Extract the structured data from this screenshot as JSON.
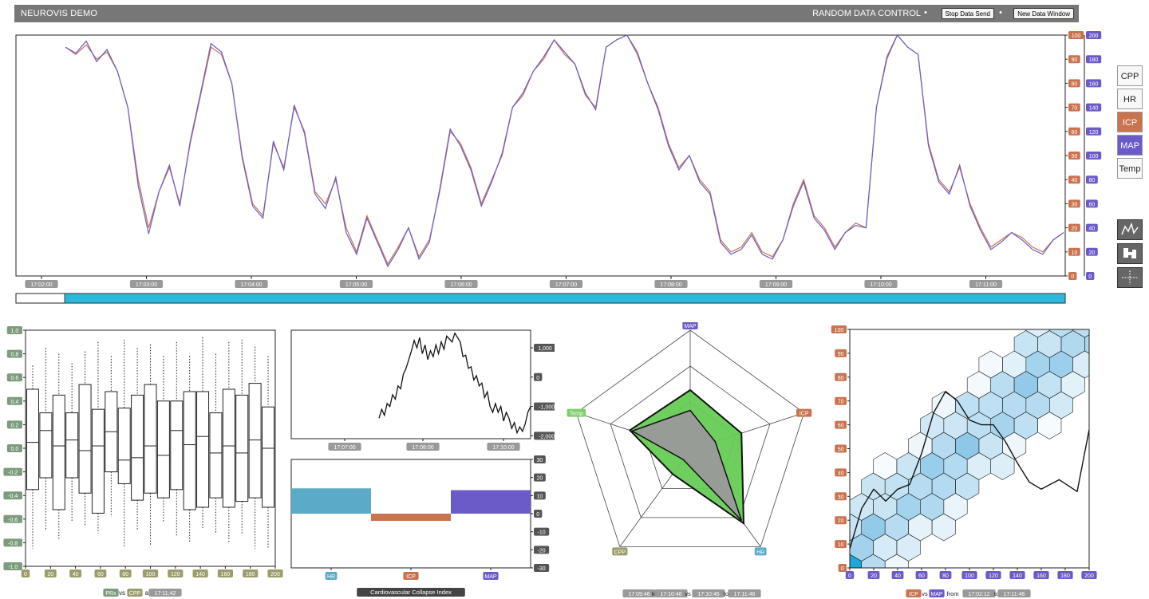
{
  "header": {
    "app_title": "NEUROVIS DEMO",
    "control_label": "RANDOM DATA CONTROL",
    "stop_button": "Stop Data Send",
    "new_window_button": "New Data Window"
  },
  "colors": {
    "header_bg": "#777777",
    "icp": "#c9734f",
    "map": "#6b5bc9",
    "cpp": "#9c9c6c",
    "hr": "#5aaac8",
    "temp": "#7ccf6a",
    "prx": "#7c9c7c",
    "brush": "#2bb8dc",
    "radar_fill": "#66cc55",
    "radar_inner": "#999999"
  },
  "sidebar": {
    "channels": [
      {
        "label": "CPP",
        "active": false
      },
      {
        "label": "HR",
        "active": false
      },
      {
        "label": "ICP",
        "active": true,
        "color": "#c9734f"
      },
      {
        "label": "MAP",
        "active": true,
        "color": "#6b5bc9"
      },
      {
        "label": "Temp",
        "active": false
      }
    ],
    "tools": [
      {
        "icon": "line-chart-icon"
      },
      {
        "icon": "block-chart-icon"
      },
      {
        "icon": "crosshair-icon"
      }
    ]
  },
  "chart_data": [
    {
      "type": "line",
      "id": "main-timeseries",
      "x_ticks": [
        "17:02:00",
        "17:03:00",
        "17:04:00",
        "17:05:00",
        "17:06:00",
        "17:07:00",
        "17:08:00",
        "17:09:00",
        "17:10:00",
        "17:11:00"
      ],
      "icp_axis_ticks": [
        "100",
        "90",
        "80",
        "70",
        "60",
        "50",
        "40",
        "30",
        "20",
        "10",
        "0"
      ],
      "map_axis_ticks": [
        "200",
        "180",
        "160",
        "140",
        "120",
        "100",
        "80",
        "60",
        "40",
        "20",
        "0"
      ],
      "ylim_icp": [
        0,
        100
      ],
      "ylim_map": [
        0,
        200
      ],
      "series": [
        {
          "name": "ICP",
          "color": "#c9734f",
          "values": [
            95,
            92,
            96,
            90,
            93,
            85,
            70,
            40,
            20,
            35,
            45,
            30,
            55,
            75,
            95,
            92,
            80,
            50,
            30,
            25,
            55,
            45,
            70,
            60,
            35,
            30,
            40,
            20,
            10,
            25,
            15,
            5,
            12,
            20,
            8,
            15,
            35,
            60,
            55,
            45,
            30,
            40,
            50,
            70,
            75,
            85,
            90,
            98,
            92,
            88,
            75,
            70,
            95,
            98,
            100,
            92,
            80,
            70,
            55,
            45,
            50,
            40,
            35,
            15,
            10,
            12,
            18,
            10,
            8,
            15,
            30,
            40,
            25,
            20,
            12,
            18,
            22,
            20,
            70,
            90,
            100,
            95,
            92,
            55,
            40,
            35,
            45,
            30,
            20,
            12,
            15,
            18,
            16,
            12,
            10,
            15,
            18
          ]
        },
        {
          "name": "MAP",
          "color": "#6b5bc9",
          "values": [
            190,
            185,
            195,
            178,
            188,
            170,
            140,
            75,
            35,
            70,
            92,
            58,
            112,
            152,
            193,
            186,
            160,
            98,
            58,
            48,
            112,
            88,
            142,
            118,
            68,
            56,
            82,
            36,
            18,
            48,
            28,
            8,
            22,
            40,
            14,
            28,
            72,
            122,
            108,
            88,
            58,
            78,
            102,
            140,
            152,
            170,
            182,
            196,
            186,
            176,
            152,
            138,
            190,
            196,
            200,
            186,
            160,
            138,
            108,
            88,
            100,
            78,
            68,
            28,
            18,
            22,
            34,
            18,
            14,
            30,
            58,
            78,
            48,
            38,
            22,
            36,
            42,
            40,
            140,
            182,
            200,
            190,
            184,
            108,
            78,
            68,
            92,
            58,
            38,
            22,
            28,
            36,
            30,
            22,
            18,
            30,
            36
          ]
        }
      ]
    },
    {
      "type": "box",
      "id": "prx-boxplot",
      "x_ticks": [
        "0",
        "20",
        "40",
        "60",
        "80",
        "100",
        "120",
        "140",
        "160",
        "180",
        "200"
      ],
      "y_ticks": [
        "1.0",
        "0.8",
        "0.6",
        "0.4",
        "0.2",
        "0.0",
        "-0.2",
        "-0.4",
        "-0.6",
        "-0.8",
        "-1.0"
      ],
      "ylim": [
        -1.0,
        1.0
      ],
      "boxes": [
        {
          "q1": -0.35,
          "med": 0.05,
          "q3": 0.5,
          "min": -0.85,
          "max": 0.7
        },
        {
          "q1": -0.25,
          "med": 0.15,
          "q3": 0.3,
          "min": -0.7,
          "max": 0.85
        },
        {
          "q1": -0.52,
          "med": 0.02,
          "q3": 0.45,
          "min": -0.78,
          "max": 0.8
        },
        {
          "q1": -0.25,
          "med": 0.07,
          "q3": 0.3,
          "min": -0.62,
          "max": 0.72
        },
        {
          "q1": -0.38,
          "med": -0.02,
          "q3": 0.54,
          "min": -0.65,
          "max": 0.82
        },
        {
          "q1": -0.55,
          "med": 0.02,
          "q3": 0.33,
          "min": -0.72,
          "max": 0.9
        },
        {
          "q1": -0.2,
          "med": 0.14,
          "q3": 0.48,
          "min": -0.58,
          "max": 0.78
        },
        {
          "q1": -0.3,
          "med": -0.1,
          "q3": 0.34,
          "min": -0.83,
          "max": 0.92
        },
        {
          "q1": -0.44,
          "med": -0.08,
          "q3": 0.45,
          "min": -0.7,
          "max": 0.85
        },
        {
          "q1": -0.38,
          "med": 0.02,
          "q3": 0.54,
          "min": -0.82,
          "max": 0.88
        },
        {
          "q1": -0.42,
          "med": -0.06,
          "q3": 0.4,
          "min": -0.62,
          "max": 0.78
        },
        {
          "q1": -0.35,
          "med": 0.15,
          "q3": 0.4,
          "min": -0.75,
          "max": 0.9
        },
        {
          "q1": -0.52,
          "med": 0.03,
          "q3": 0.48,
          "min": -0.8,
          "max": 0.78
        },
        {
          "q1": -0.5,
          "med": 0.1,
          "q3": 0.48,
          "min": -0.68,
          "max": 0.94
        },
        {
          "q1": -0.42,
          "med": -0.04,
          "q3": 0.3,
          "min": -0.72,
          "max": 0.8
        },
        {
          "q1": -0.5,
          "med": 0.02,
          "q3": 0.5,
          "min": -0.8,
          "max": 0.9
        },
        {
          "q1": -0.45,
          "med": -0.04,
          "q3": 0.45,
          "min": -0.72,
          "max": 0.92
        },
        {
          "q1": -0.42,
          "med": 0.07,
          "q3": 0.55,
          "min": -0.85,
          "max": 0.86
        },
        {
          "q1": -0.5,
          "med": 0.0,
          "q3": 0.35,
          "min": -0.85,
          "max": 0.78
        }
      ],
      "caption": {
        "a": "PRx",
        "vs": "vs",
        "b": "CPP",
        "at": "at",
        "time": "17:11:42"
      }
    },
    {
      "type": "line",
      "id": "cci-timeseries",
      "x_ticks": [
        "17:07:00",
        "17:08:00",
        "17:10:00"
      ],
      "y_ticks": [
        "1,000",
        "0",
        "-1,000",
        "-2,000"
      ],
      "ylim": [
        -2100,
        1600
      ],
      "values": [
        -1400,
        -1100,
        -1300,
        -900,
        -1000,
        -600,
        -750,
        -300,
        -400,
        100,
        300,
        600,
        900,
        1250,
        1000,
        1350,
        800,
        1100,
        600,
        900,
        700,
        1100,
        800,
        1200,
        950,
        1400,
        1300,
        1200,
        1500,
        1350,
        1200,
        700,
        750,
        300,
        350,
        -100,
        50,
        -300,
        -200,
        -700,
        -500,
        -1000,
        -1200,
        -900,
        -1200,
        -1000,
        -1500,
        -1200,
        -1400,
        -1750,
        -1550,
        -1900,
        -1700,
        -1850,
        -1600,
        -1200,
        -1000
      ]
    },
    {
      "type": "bar",
      "id": "cci-bars",
      "categories": [
        "HR",
        "ICP",
        "MAP"
      ],
      "values": [
        14,
        -4,
        13
      ],
      "colors": [
        "#5aaac8",
        "#c9734f",
        "#6b5bc9"
      ],
      "y_ticks": [
        "30",
        "20",
        "10",
        "0",
        "-10",
        "-20",
        "-30"
      ],
      "ylim": [
        -30,
        30
      ],
      "caption": "Cardiovascular Collapse Index"
    },
    {
      "type": "radar",
      "id": "radar",
      "axes": [
        "MAP",
        "ICP",
        "HR",
        "CPP",
        "Temp"
      ],
      "series": [
        {
          "values": [
            0.5,
            0.45,
            0.76,
            0.25,
            0.53
          ]
        },
        {
          "values": [
            0.33,
            0.22,
            0.73,
            0.1,
            0.51
          ]
        }
      ],
      "caption": {
        "r1_start": "17:09:46",
        "to1": "to",
        "r1_end": "17:10:46",
        "vs": "vs",
        "r2_start": "17:10:46",
        "to2": "to",
        "r2_end": "17:11:46"
      }
    },
    {
      "type": "heatmap",
      "id": "hexbin",
      "x_ticks": [
        "0",
        "20",
        "40",
        "60",
        "80",
        "100",
        "120",
        "140",
        "160",
        "180",
        "200"
      ],
      "y_ticks": [
        "100",
        "90",
        "80",
        "70",
        "60",
        "50",
        "40",
        "30",
        "20",
        "10",
        "0"
      ],
      "xlim": [
        0,
        200
      ],
      "ylim": [
        0,
        100
      ],
      "curve": [
        [
          0,
          8
        ],
        [
          10,
          25
        ],
        [
          20,
          33
        ],
        [
          30,
          28
        ],
        [
          40,
          33
        ],
        [
          50,
          35
        ],
        [
          60,
          48
        ],
        [
          70,
          65
        ],
        [
          80,
          74
        ],
        [
          90,
          70
        ],
        [
          100,
          62
        ],
        [
          110,
          60
        ],
        [
          120,
          60
        ],
        [
          130,
          53
        ],
        [
          140,
          44
        ],
        [
          150,
          36
        ],
        [
          160,
          33
        ],
        [
          175,
          37
        ],
        [
          190,
          32
        ],
        [
          200,
          58
        ]
      ],
      "caption": {
        "a": "ICP",
        "vs": "vs",
        "b": "MAP",
        "from": "from",
        "start": "17:02:12",
        "to": "to",
        "end": "17:11:46"
      }
    }
  ]
}
